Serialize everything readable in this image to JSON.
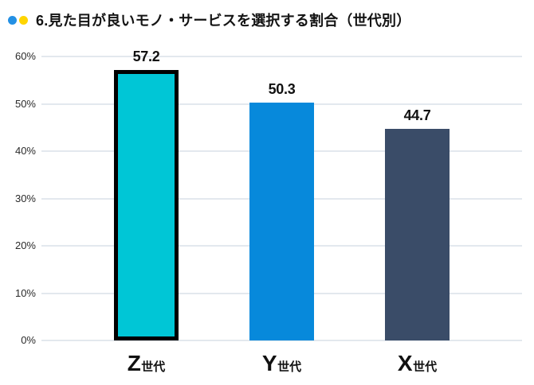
{
  "header": {
    "title": "6.見た目が良いモノ・サービスを選択する割合（世代別）",
    "bullet_colors": {
      "blue": "#2490E4",
      "yellow": "#FFD500"
    }
  },
  "chart_data": {
    "type": "bar",
    "title": "6.見た目が良いモノ・サービスを選択する割合（世代別）",
    "categories": [
      "Z世代",
      "Y世代",
      "X世代"
    ],
    "category_parts": [
      [
        "Z",
        "世代"
      ],
      [
        "Y",
        "世代"
      ],
      [
        "X",
        "世代"
      ]
    ],
    "values": [
      57.2,
      50.3,
      44.7
    ],
    "value_labels": [
      "57.2",
      "50.3",
      "44.7"
    ],
    "bar_colors": [
      "#00C6D6",
      "#0789DB",
      "#3A4C68"
    ],
    "highlight": {
      "index": 0,
      "border_color": "#000000"
    },
    "xlabel": "",
    "ylabel": "",
    "ylim": [
      0,
      60
    ],
    "yticks": [
      {
        "label": "60%",
        "value": 60
      },
      {
        "label": "50%",
        "value": 50
      },
      {
        "label": "40%",
        "value": 40
      },
      {
        "label": "30%",
        "value": 30
      },
      {
        "label": "20%",
        "value": 20
      },
      {
        "label": "10%",
        "value": 10
      },
      {
        "label": "0%",
        "value": 0
      }
    ],
    "grid": true,
    "gridline_color": "#E3E8EE",
    "legend": "none"
  }
}
